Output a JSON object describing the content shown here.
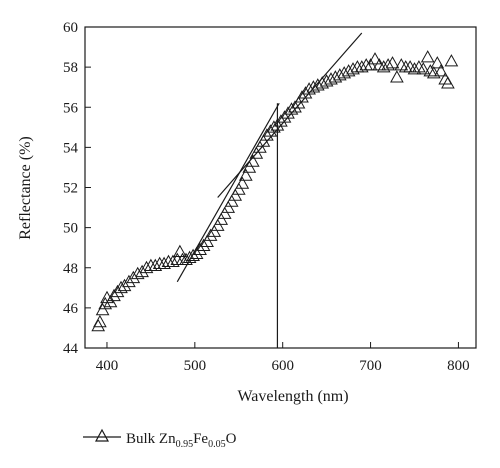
{
  "chart_data": {
    "type": "scatter",
    "title": "",
    "xlabel": "Wavelength (nm)",
    "ylabel": "Reflectance (%)",
    "xlim": [
      375,
      820
    ],
    "ylim": [
      44,
      60
    ],
    "x_ticks": [
      400,
      500,
      600,
      700,
      800
    ],
    "y_ticks": [
      44,
      46,
      48,
      50,
      52,
      54,
      56,
      58,
      60
    ],
    "grid": false,
    "legend_position": "bottom-left",
    "series": [
      {
        "name": "Bulk Zn0.95Fe0.05O",
        "marker": "open-triangle",
        "color": "#1a1a1a",
        "points": [
          [
            390,
            45.1
          ],
          [
            392,
            45.3
          ],
          [
            395,
            45.9
          ],
          [
            398,
            46.2
          ],
          [
            400,
            46.5
          ],
          [
            404,
            46.3
          ],
          [
            408,
            46.6
          ],
          [
            412,
            46.8
          ],
          [
            416,
            47.0
          ],
          [
            420,
            47.1
          ],
          [
            425,
            47.3
          ],
          [
            430,
            47.5
          ],
          [
            435,
            47.7
          ],
          [
            440,
            47.8
          ],
          [
            445,
            48.0
          ],
          [
            450,
            48.1
          ],
          [
            455,
            48.1
          ],
          [
            460,
            48.2
          ],
          [
            465,
            48.2
          ],
          [
            470,
            48.3
          ],
          [
            475,
            48.3
          ],
          [
            480,
            48.4
          ],
          [
            483,
            48.8
          ],
          [
            486,
            48.4
          ],
          [
            490,
            48.4
          ],
          [
            494,
            48.5
          ],
          [
            498,
            48.6
          ],
          [
            502,
            48.7
          ],
          [
            506,
            48.9
          ],
          [
            510,
            49.1
          ],
          [
            514,
            49.3
          ],
          [
            518,
            49.6
          ],
          [
            522,
            49.8
          ],
          [
            526,
            50.1
          ],
          [
            530,
            50.4
          ],
          [
            534,
            50.7
          ],
          [
            538,
            51.0
          ],
          [
            542,
            51.3
          ],
          [
            546,
            51.6
          ],
          [
            550,
            51.9
          ],
          [
            554,
            52.2
          ],
          [
            558,
            52.6
          ],
          [
            562,
            53.0
          ],
          [
            566,
            53.3
          ],
          [
            570,
            53.7
          ],
          [
            574,
            54.0
          ],
          [
            578,
            54.3
          ],
          [
            582,
            54.6
          ],
          [
            586,
            54.8
          ],
          [
            590,
            55.0
          ],
          [
            594,
            55.1
          ],
          [
            598,
            55.3
          ],
          [
            602,
            55.5
          ],
          [
            606,
            55.7
          ],
          [
            610,
            55.9
          ],
          [
            614,
            56.0
          ],
          [
            618,
            56.2
          ],
          [
            622,
            56.5
          ],
          [
            626,
            56.7
          ],
          [
            630,
            56.9
          ],
          [
            635,
            57.0
          ],
          [
            640,
            57.1
          ],
          [
            645,
            57.2
          ],
          [
            650,
            57.3
          ],
          [
            655,
            57.4
          ],
          [
            660,
            57.5
          ],
          [
            665,
            57.6
          ],
          [
            670,
            57.7
          ],
          [
            675,
            57.8
          ],
          [
            680,
            57.9
          ],
          [
            685,
            58.0
          ],
          [
            690,
            58.0
          ],
          [
            695,
            58.1
          ],
          [
            700,
            58.1
          ],
          [
            705,
            58.4
          ],
          [
            710,
            58.1
          ],
          [
            715,
            58.0
          ],
          [
            720,
            58.1
          ],
          [
            725,
            58.2
          ],
          [
            730,
            57.5
          ],
          [
            735,
            58.1
          ],
          [
            740,
            58.0
          ],
          [
            745,
            58.0
          ],
          [
            750,
            57.9
          ],
          [
            755,
            58.0
          ],
          [
            760,
            57.9
          ],
          [
            765,
            58.5
          ],
          [
            768,
            57.8
          ],
          [
            772,
            57.7
          ],
          [
            776,
            58.2
          ],
          [
            780,
            57.8
          ],
          [
            785,
            57.4
          ],
          [
            788,
            57.2
          ],
          [
            792,
            58.3
          ]
        ]
      }
    ],
    "annotations": {
      "fit_line_1": {
        "x": [
          480,
          596
        ],
        "y": [
          47.3,
          56.2
        ]
      },
      "fit_line_2": {
        "x": [
          526,
          690
        ],
        "y": [
          51.5,
          59.7
        ]
      },
      "vertical_line": {
        "x": 594,
        "y": [
          44,
          56.2
        ]
      }
    }
  },
  "legend": {
    "prefix": "Bulk Zn",
    "sub1": "0.95",
    "mid": "Fe",
    "sub2": "0.05",
    "suffix": "O"
  }
}
